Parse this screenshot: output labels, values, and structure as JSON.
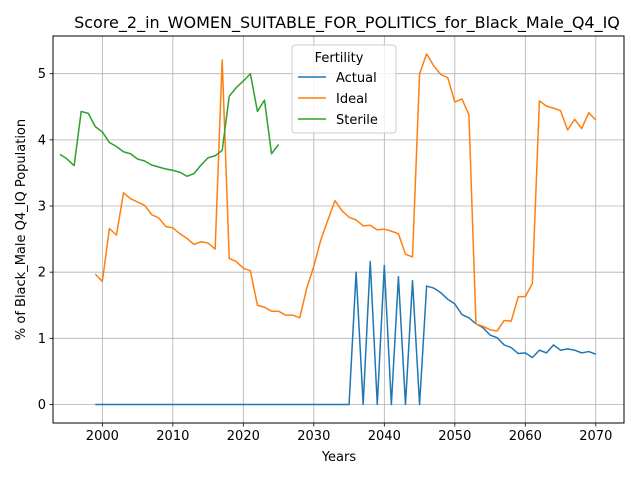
{
  "chart_data": {
    "type": "line",
    "title": "Score_2_in_WOMEN_SUITABLE_FOR_POLITICS_for_Black_Male_Q4_IQ",
    "xlabel": "Years",
    "ylabel": "% of Black_Male Q4_IQ Population",
    "xlim": [
      1993,
      2074
    ],
    "ylim": [
      -0.28,
      5.57
    ],
    "xticks": [
      2000,
      2010,
      2020,
      2030,
      2040,
      2050,
      2060,
      2070
    ],
    "yticks": [
      0,
      1,
      2,
      3,
      4,
      5
    ],
    "grid": true,
    "legend": {
      "title": "Fertility",
      "placement": "upper center"
    },
    "series": [
      {
        "name": "Actual",
        "color": "#1f77b4",
        "x": [
          1999,
          2000,
          2001,
          2002,
          2003,
          2004,
          2005,
          2006,
          2007,
          2008,
          2009,
          2010,
          2011,
          2012,
          2013,
          2014,
          2015,
          2016,
          2017,
          2018,
          2019,
          2020,
          2021,
          2022,
          2023,
          2024,
          2025,
          2026,
          2027,
          2028,
          2029,
          2030,
          2031,
          2032,
          2033,
          2034,
          2035,
          2036,
          2037,
          2038,
          2039,
          2040,
          2041,
          2042,
          2043,
          2044,
          2045,
          2046,
          2047,
          2048,
          2049,
          2050,
          2051,
          2052,
          2053,
          2054,
          2055,
          2056,
          2057,
          2058,
          2059,
          2060,
          2061,
          2062,
          2063,
          2064,
          2065,
          2066,
          2067,
          2068,
          2069,
          2070
        ],
        "y": [
          0,
          0,
          0,
          0,
          0,
          0,
          0,
          0,
          0,
          0,
          0,
          0,
          0,
          0,
          0,
          0,
          0,
          0,
          0,
          0,
          0,
          0,
          0,
          0,
          0,
          0,
          0,
          0,
          0,
          0,
          0,
          0,
          0,
          0,
          0,
          0,
          0,
          2.0,
          0,
          2.16,
          0,
          2.1,
          0,
          1.93,
          0,
          1.87,
          0,
          1.79,
          1.76,
          1.69,
          1.59,
          1.52,
          1.36,
          1.31,
          1.22,
          1.16,
          1.05,
          1.01,
          0.9,
          0.86,
          0.77,
          0.78,
          0.71,
          0.82,
          0.78,
          0.9,
          0.82,
          0.84,
          0.82,
          0.78,
          0.8,
          0.76
        ]
      },
      {
        "name": "Ideal",
        "color": "#ff7f0e",
        "x": [
          1999,
          2000,
          2001,
          2002,
          2003,
          2004,
          2005,
          2006,
          2007,
          2008,
          2009,
          2010,
          2011,
          2012,
          2013,
          2014,
          2015,
          2016,
          2017,
          2018,
          2019,
          2020,
          2021,
          2022,
          2023,
          2024,
          2025,
          2026,
          2027,
          2028,
          2029,
          2030,
          2031,
          2032,
          2033,
          2034,
          2035,
          2036,
          2037,
          2038,
          2039,
          2040,
          2041,
          2042,
          2043,
          2044,
          2045,
          2046,
          2047,
          2048,
          2049,
          2050,
          2051,
          2052,
          2053,
          2054,
          2055,
          2056,
          2057,
          2058,
          2059,
          2060,
          2061,
          2062,
          2063,
          2064,
          2065,
          2066,
          2067,
          2068,
          2069,
          2070
        ],
        "y": [
          1.97,
          1.86,
          2.66,
          2.56,
          3.2,
          3.11,
          3.06,
          3.01,
          2.87,
          2.82,
          2.69,
          2.67,
          2.58,
          2.51,
          2.42,
          2.46,
          2.44,
          2.35,
          5.21,
          2.21,
          2.16,
          2.06,
          2.02,
          1.5,
          1.47,
          1.41,
          1.41,
          1.35,
          1.35,
          1.31,
          1.76,
          2.09,
          2.49,
          2.79,
          3.08,
          2.93,
          2.83,
          2.79,
          2.7,
          2.71,
          2.64,
          2.65,
          2.62,
          2.58,
          2.27,
          2.23,
          5.0,
          5.3,
          5.12,
          4.99,
          4.94,
          4.57,
          4.62,
          4.38,
          1.22,
          1.18,
          1.13,
          1.11,
          1.27,
          1.26,
          1.63,
          1.63,
          1.83,
          4.59,
          4.51,
          4.48,
          4.44,
          4.15,
          4.31,
          4.17,
          4.41,
          4.3
        ]
      },
      {
        "name": "Sterile",
        "color": "#2ca02c",
        "x": [
          1994,
          1995,
          1996,
          1997,
          1998,
          1999,
          2000,
          2001,
          2002,
          2003,
          2004,
          2005,
          2006,
          2007,
          2008,
          2009,
          2010,
          2011,
          2012,
          2013,
          2014,
          2015,
          2016,
          2017,
          2018,
          2019,
          2020,
          2021,
          2022,
          2023,
          2024,
          2025
        ],
        "y": [
          3.78,
          3.71,
          3.61,
          4.43,
          4.4,
          4.2,
          4.12,
          3.96,
          3.9,
          3.82,
          3.79,
          3.71,
          3.68,
          3.62,
          3.59,
          3.56,
          3.54,
          3.51,
          3.45,
          3.49,
          3.62,
          3.73,
          3.76,
          3.84,
          4.66,
          4.79,
          4.89,
          5.0,
          4.43,
          4.6,
          3.79,
          3.93
        ]
      }
    ]
  }
}
